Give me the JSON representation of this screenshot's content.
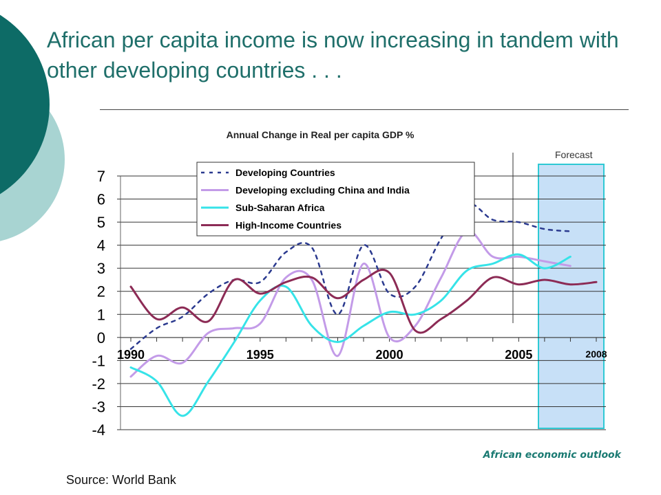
{
  "slide": {
    "title": "African per capita income is now increasing in tandem with other developing countries . . .",
    "source": "Source: World Bank",
    "footer_brand": "African economic outlook"
  },
  "colors": {
    "title": "#1f6f6a",
    "deco_dark": "#0d6b66",
    "deco_light": "#a8d4d2",
    "forecast_fill": "#c7e0f7",
    "forecast_border": "#2ec9d4"
  },
  "chart_data": {
    "type": "line",
    "title": "Annual Change in Real per capita  GDP %",
    "forecast_label": "Forecast",
    "ylim": [
      -4,
      7
    ],
    "yticks": [
      "7",
      "6",
      "5",
      "4",
      "3",
      "2",
      "1",
      "0",
      "-1",
      "-2",
      "-3",
      "-4"
    ],
    "xlim": [
      1990,
      2008
    ],
    "xtick_labels": [
      {
        "x": 1990,
        "label": "1990"
      },
      {
        "x": 1995,
        "label": "1995"
      },
      {
        "x": 2000,
        "label": "2000"
      },
      {
        "x": 2005,
        "label": "2005"
      },
      {
        "x": 2008,
        "label": "2008"
      }
    ],
    "forecast_range": [
      2006,
      2008
    ],
    "legend_placement": "top-center",
    "grid": "horizontal",
    "series": [
      {
        "name": "Developing Countries",
        "color": "#2b3a8f",
        "dash": true,
        "points": [
          [
            1990,
            -0.5
          ],
          [
            1991,
            0.4
          ],
          [
            1992,
            0.9
          ],
          [
            1993,
            1.9
          ],
          [
            1994,
            2.5
          ],
          [
            1995,
            2.4
          ],
          [
            1996,
            3.7
          ],
          [
            1997,
            3.9
          ],
          [
            1998,
            1.0
          ],
          [
            1999,
            4.0
          ],
          [
            2000,
            1.9
          ],
          [
            2001,
            2.2
          ],
          [
            2002,
            4.3
          ],
          [
            2003,
            5.8
          ],
          [
            2004,
            5.1
          ],
          [
            2005,
            5.0
          ],
          [
            2006,
            4.7
          ],
          [
            2007,
            4.6
          ]
        ]
      },
      {
        "name": "Developing excluding China and India",
        "color": "#c39be8",
        "dash": false,
        "points": [
          [
            1990,
            -1.7
          ],
          [
            1991,
            -0.8
          ],
          [
            1992,
            -1.1
          ],
          [
            1993,
            0.2
          ],
          [
            1994,
            0.4
          ],
          [
            1995,
            0.6
          ],
          [
            1996,
            2.6
          ],
          [
            1997,
            2.5
          ],
          [
            1998,
            -0.8
          ],
          [
            1999,
            3.2
          ],
          [
            2000,
            0.0
          ],
          [
            2001,
            0.5
          ],
          [
            2002,
            2.6
          ],
          [
            2003,
            4.6
          ],
          [
            2004,
            3.5
          ],
          [
            2005,
            3.5
          ],
          [
            2006,
            3.3
          ],
          [
            2007,
            3.1
          ]
        ]
      },
      {
        "name": "Sub-Saharan Africa",
        "color": "#36e3e8",
        "dash": false,
        "points": [
          [
            1990,
            -1.3
          ],
          [
            1991,
            -1.9
          ],
          [
            1992,
            -3.4
          ],
          [
            1993,
            -1.9
          ],
          [
            1994,
            -0.2
          ],
          [
            1995,
            1.6
          ],
          [
            1996,
            2.2
          ],
          [
            1997,
            0.5
          ],
          [
            1998,
            -0.2
          ],
          [
            1999,
            0.5
          ],
          [
            2000,
            1.1
          ],
          [
            2001,
            1.0
          ],
          [
            2002,
            1.6
          ],
          [
            2003,
            2.9
          ],
          [
            2004,
            3.2
          ],
          [
            2005,
            3.6
          ],
          [
            2006,
            3.0
          ],
          [
            2007,
            3.5
          ]
        ]
      },
      {
        "name": "High-Income Countries",
        "color": "#8c2b55",
        "dash": false,
        "points": [
          [
            1990,
            2.2
          ],
          [
            1991,
            0.8
          ],
          [
            1992,
            1.3
          ],
          [
            1993,
            0.7
          ],
          [
            1994,
            2.5
          ],
          [
            1995,
            1.9
          ],
          [
            1996,
            2.4
          ],
          [
            1997,
            2.6
          ],
          [
            1998,
            1.7
          ],
          [
            1999,
            2.5
          ],
          [
            2000,
            2.8
          ],
          [
            2001,
            0.3
          ],
          [
            2002,
            0.8
          ],
          [
            2003,
            1.6
          ],
          [
            2004,
            2.6
          ],
          [
            2005,
            2.3
          ],
          [
            2006,
            2.5
          ],
          [
            2007,
            2.3
          ],
          [
            2008,
            2.4
          ]
        ]
      }
    ]
  }
}
